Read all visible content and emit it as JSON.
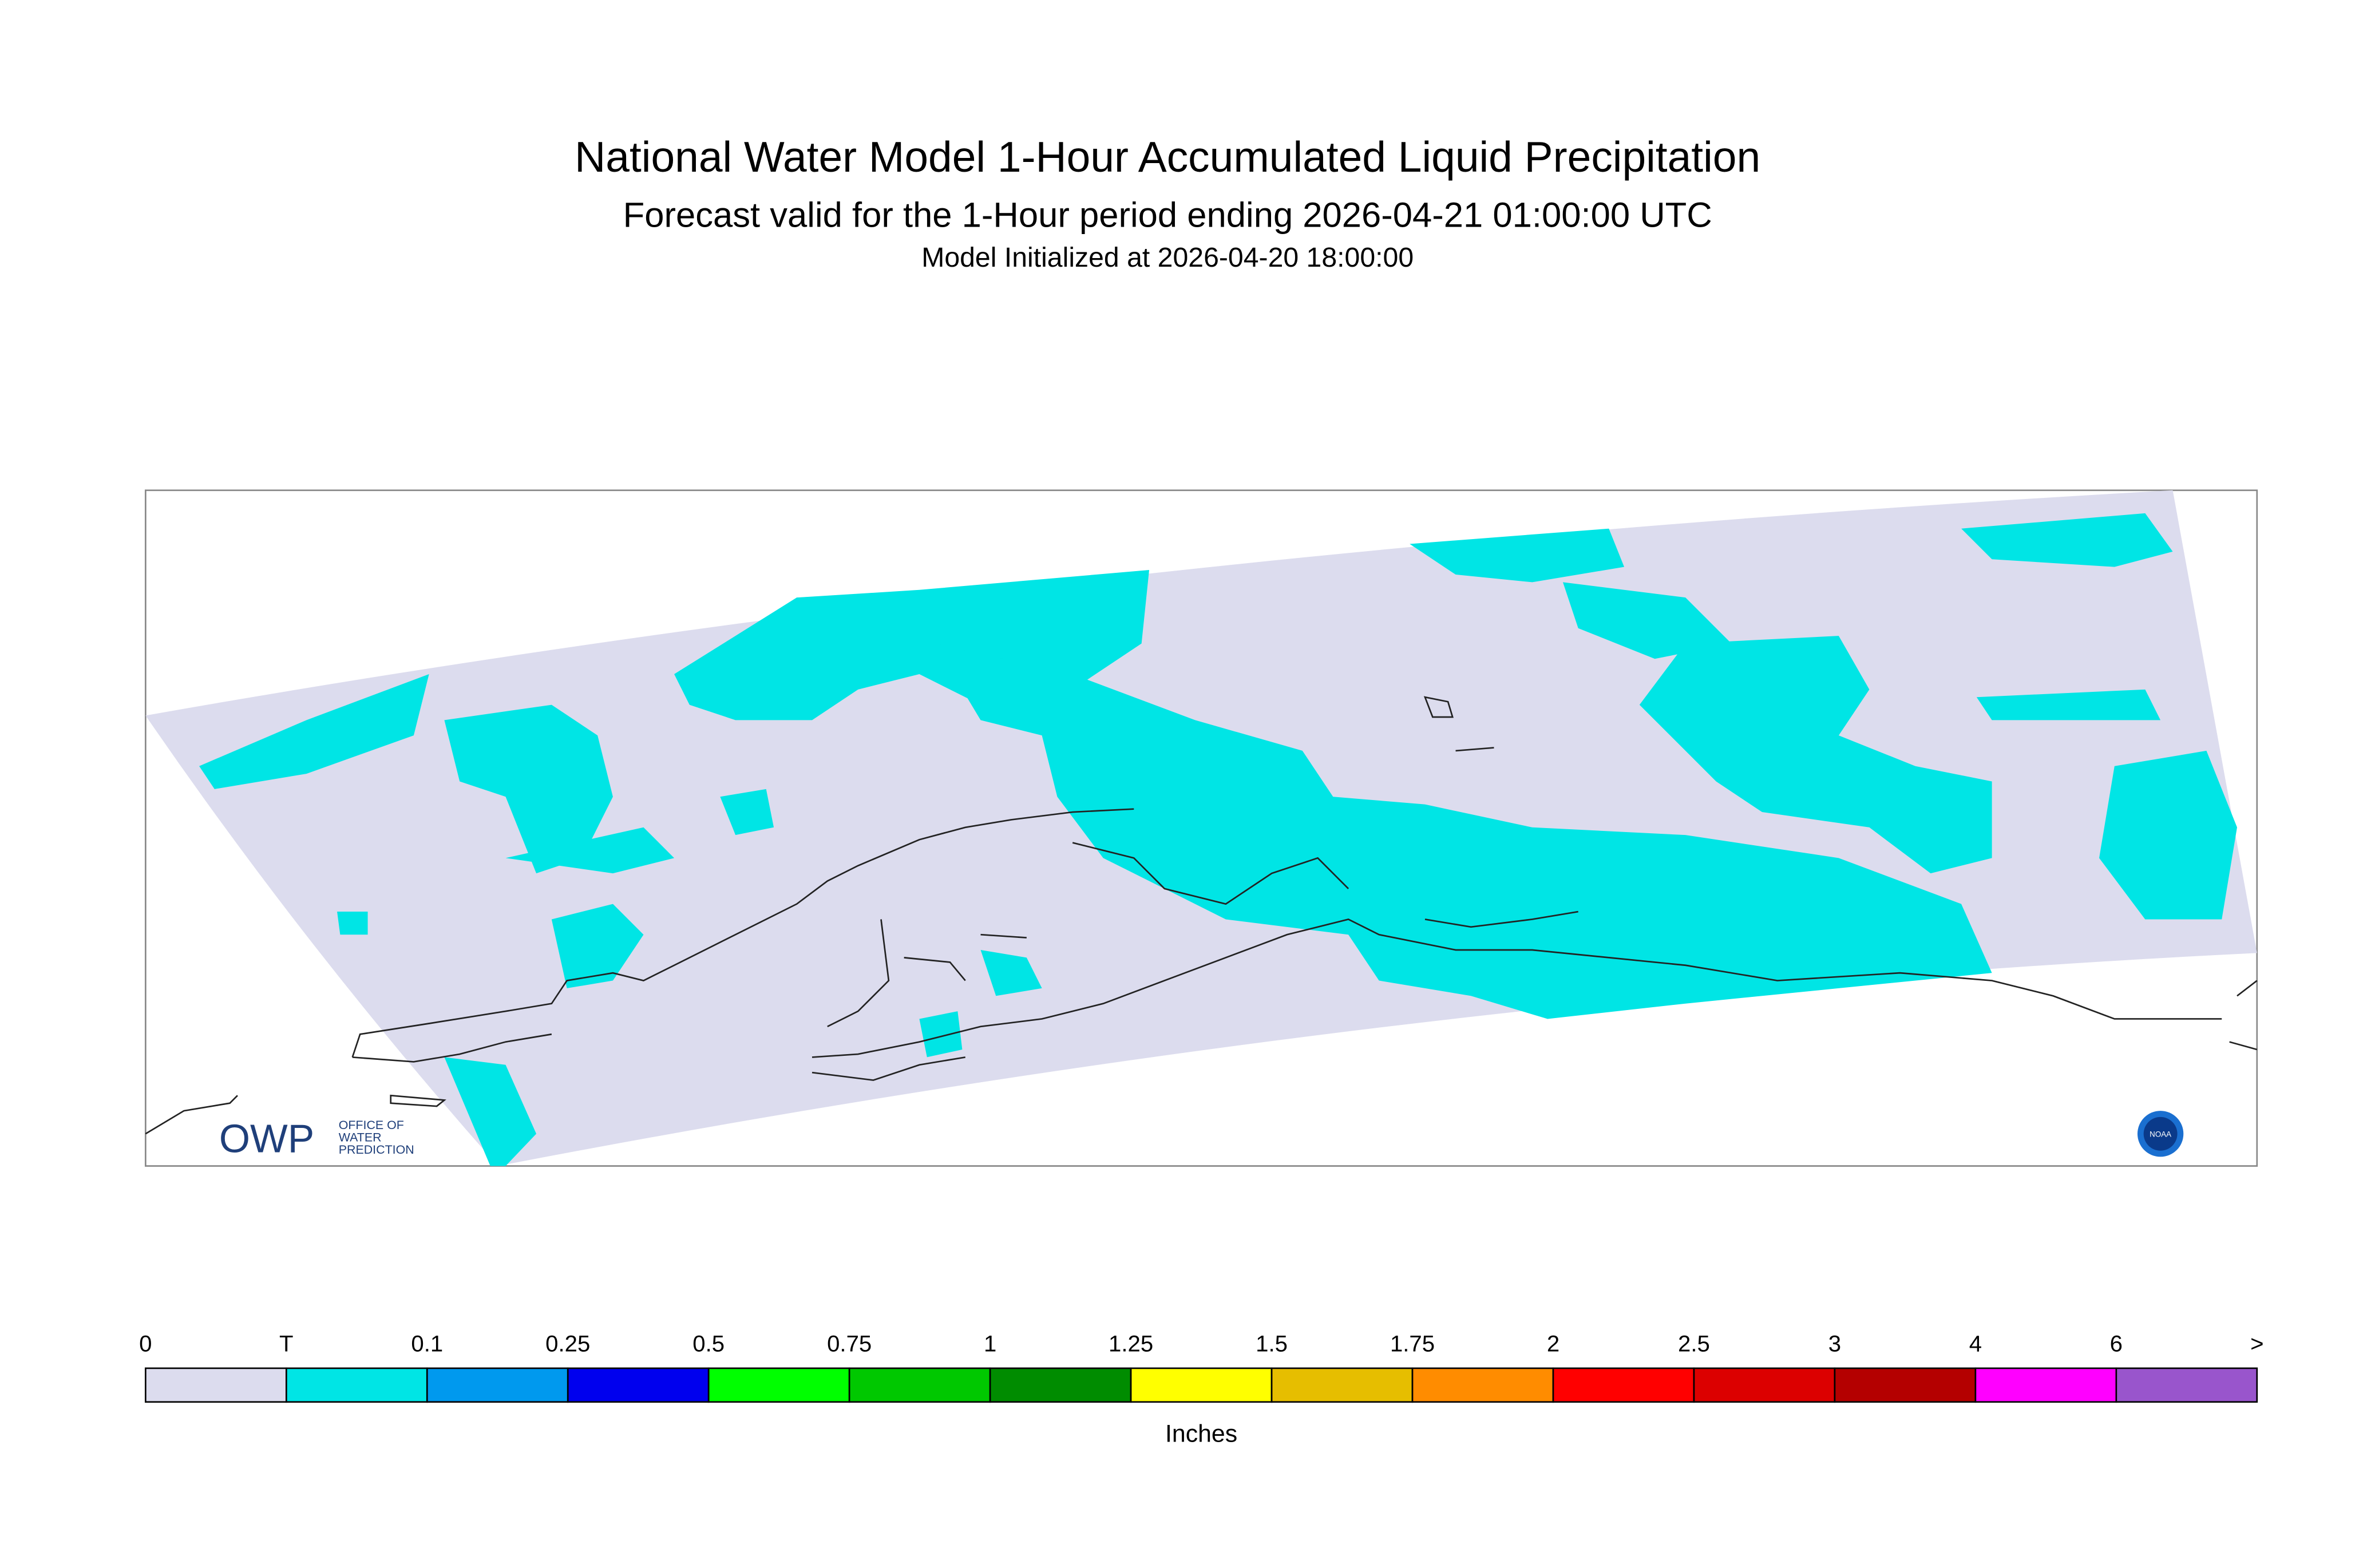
{
  "header": {
    "title": "National Water Model 1-Hour Accumulated Liquid Precipitation",
    "subtitle": "Forecast valid for the 1-Hour period ending 2026-04-21 01:00:00 UTC",
    "init": "Model Initialized at 2026-04-20 18:00:00"
  },
  "map": {
    "logo_left": {
      "acronym": "OWP",
      "line1": "OFFICE OF",
      "line2": "WATER",
      "line3": "PREDICTION"
    },
    "logo_right": "NOAA"
  },
  "legend": {
    "labels": [
      "0",
      "T",
      "0.1",
      "0.25",
      "0.5",
      "0.75",
      "1",
      "1.25",
      "1.5",
      "1.75",
      "2",
      "2.5",
      "3",
      "4",
      "6",
      ">"
    ],
    "colors": [
      "#dcdcee",
      "#00e5e5",
      "#0099ee",
      "#0000ee",
      "#00ff00",
      "#00c800",
      "#008c00",
      "#ffff00",
      "#e6be00",
      "#ff8c00",
      "#ff0000",
      "#dc0000",
      "#b40000",
      "#ff00ff",
      "#9955cc"
    ],
    "unit": "Inches"
  }
}
